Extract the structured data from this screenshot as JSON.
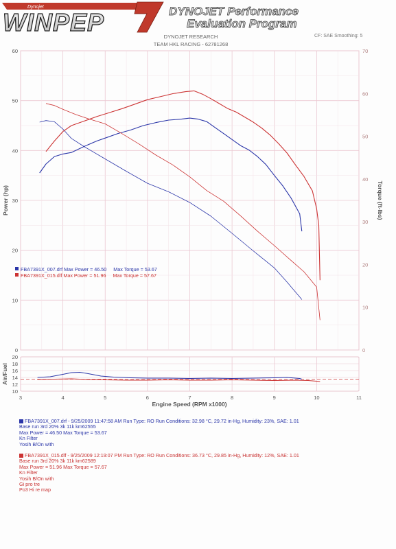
{
  "header": {
    "logo_text": "WINPEP",
    "logo_number": "7",
    "logo_tagline": "Dynojet",
    "app_title_line1": "DYNOJET Performance",
    "app_title_line2": "Evaluation Program",
    "report_line1": "DYNOJET RESEARCH",
    "report_line2": "TEAM HKL RACING - 62781268",
    "corner_text": "CF: SAE Smoothing: 5"
  },
  "colors": {
    "blue_run": "#2a35a8",
    "red_run": "#cc3333",
    "grid": "#ebc8d2",
    "axis_text": "#555555"
  },
  "legend_inset": [
    {
      "text": "FBA7391X_007.drf Max Power = 46.50     Max Torque = 53.67",
      "color": "#2a35a8"
    },
    {
      "text": "FBA7391X_015.dlf Max Power = 51.96     Max Torque = 57.67",
      "color": "#cc3333"
    }
  ],
  "runs": [
    {
      "color": "#2a35a8",
      "lines": [
        "FBA7391X_007.drf - 9/25/2009 11:47:58 AM  Run Type: RO  Run Conditions: 32.98 °C, 29.72 in-Hg,  Humidity:  23%, SAE: 1.01",
        "Base  run 3rd 20% 3k 11k km62555",
        "Max Power = 46.50  Max Torque = 53.67",
        "Kn Filter",
        "Yosih B/On with"
      ]
    },
    {
      "color": "#cc3333",
      "lines": [
        "FBA7391X_015.dlf - 9/25/2009 12:19:07 PM  Run Type: RO  Run Conditions: 36.73 °C, 29.85 in-Hg,  Humidity:  12%, SAE: 1.01",
        "Base  run 3rd 20% 3k 11k km62589",
        "Max Power = 51.96  Max Torque = 57.67",
        "Kn Filter",
        "Yosih B/On with",
        "Gi pro tre",
        "Po3 Hi re map"
      ]
    }
  ],
  "chart_data": [
    {
      "type": "line",
      "title": "",
      "xlabel": "Engine Speed (RPM x1000)",
      "ylabel": "Power (hp)",
      "ylabel_right": "Torque (ft-lbs)",
      "xlim": [
        3,
        11
      ],
      "ylim": [
        0,
        60
      ],
      "ylim_right": [
        0,
        70
      ],
      "x_ticks": [
        3,
        4,
        5,
        6,
        7,
        8,
        9,
        10,
        11
      ],
      "y_ticks": [
        0,
        10,
        20,
        30,
        40,
        50,
        60
      ],
      "y_ticks_right": [
        0,
        10,
        20,
        30,
        40,
        50,
        60,
        70
      ],
      "grid": true,
      "series": [
        {
          "axis": "left",
          "color": "#2a35a8",
          "x": [
            3.45,
            3.6,
            3.8,
            4.0,
            4.2,
            4.5,
            4.8,
            5.0,
            5.3,
            5.6,
            5.9,
            6.2,
            6.5,
            6.8,
            7.0,
            7.2,
            7.4,
            7.6,
            7.8,
            8.0,
            8.2,
            8.4,
            8.6,
            8.8,
            9.0,
            9.2,
            9.4,
            9.6,
            9.65
          ],
          "y": [
            35.5,
            37.3,
            38.8,
            39.3,
            39.6,
            40.8,
            41.9,
            42.5,
            43.4,
            44.1,
            45.0,
            45.6,
            46.1,
            46.3,
            46.5,
            46.3,
            45.8,
            44.6,
            43.4,
            42.2,
            41.0,
            40.1,
            38.8,
            37.2,
            35.0,
            32.9,
            30.4,
            27.3,
            23.8
          ]
        },
        {
          "axis": "right",
          "color": "#2a35a8",
          "x": [
            3.45,
            3.6,
            3.8,
            4.0,
            4.2,
            4.5,
            5.0,
            5.5,
            6.0,
            6.5,
            7.0,
            7.5,
            8.0,
            8.5,
            9.0,
            9.3,
            9.6,
            9.65
          ],
          "y": [
            53.3,
            53.67,
            53.4,
            51.7,
            49.5,
            47.6,
            44.7,
            41.8,
            39.0,
            37.0,
            34.5,
            31.3,
            27.3,
            23.2,
            19.2,
            15.9,
            12.4,
            11.8
          ]
        },
        {
          "axis": "left",
          "color": "#cc3333",
          "x": [
            3.6,
            3.8,
            4.0,
            4.2,
            4.5,
            4.8,
            5.1,
            5.4,
            5.7,
            6.0,
            6.3,
            6.6,
            6.9,
            7.1,
            7.3,
            7.5,
            7.7,
            7.9,
            8.1,
            8.3,
            8.5,
            8.7,
            8.9,
            9.1,
            9.3,
            9.5,
            9.7,
            9.9,
            10.0,
            10.05,
            10.08
          ],
          "y": [
            39.8,
            41.9,
            43.8,
            45.0,
            45.9,
            46.8,
            47.6,
            48.4,
            49.3,
            50.2,
            50.8,
            51.4,
            51.8,
            51.96,
            51.3,
            50.4,
            49.4,
            48.4,
            47.7,
            46.7,
            45.7,
            44.5,
            43.1,
            41.4,
            39.5,
            37.1,
            34.8,
            31.9,
            28.3,
            25.0,
            14.0
          ]
        },
        {
          "axis": "right",
          "color": "#cc3333",
          "x": [
            3.6,
            3.8,
            4.0,
            4.3,
            4.6,
            5.0,
            5.4,
            5.8,
            6.2,
            6.6,
            7.0,
            7.4,
            7.8,
            8.2,
            8.6,
            9.0,
            9.4,
            9.7,
            10.0,
            10.08
          ],
          "y": [
            57.67,
            57.2,
            56.3,
            55.1,
            54.1,
            52.9,
            50.6,
            48.2,
            45.6,
            43.3,
            40.5,
            37.3,
            34.8,
            31.4,
            27.8,
            24.4,
            20.9,
            18.3,
            14.7,
            7.0
          ]
        }
      ]
    },
    {
      "type": "line",
      "title": "",
      "xlabel": "Engine Speed (RPM x1000)",
      "ylabel": "Air/Fuel",
      "xlim": [
        3,
        11
      ],
      "ylim": [
        10,
        20
      ],
      "x_ticks": [
        3,
        4,
        5,
        6,
        7,
        8,
        9,
        10,
        11
      ],
      "y_ticks": [
        10,
        12,
        14,
        16,
        18,
        20
      ],
      "grid": true,
      "reference_line": 13.5,
      "series": [
        {
          "color": "#2a35a8",
          "x": [
            3.4,
            3.7,
            4.0,
            4.2,
            4.4,
            4.6,
            4.9,
            5.2,
            5.6,
            6.0,
            6.5,
            7.0,
            7.5,
            8.0,
            8.5,
            9.0,
            9.3,
            9.6,
            9.65
          ],
          "y": [
            14.0,
            14.2,
            14.9,
            15.4,
            15.5,
            15.1,
            14.4,
            14.1,
            13.9,
            13.8,
            13.8,
            13.7,
            13.8,
            13.7,
            13.8,
            13.9,
            14.0,
            13.7,
            13.5
          ]
        },
        {
          "color": "#cc3333",
          "x": [
            3.4,
            3.8,
            4.2,
            4.6,
            5.0,
            5.5,
            6.0,
            6.5,
            7.0,
            7.5,
            8.0,
            8.5,
            9.0,
            9.5,
            9.8,
            10.0,
            10.08
          ],
          "y": [
            13.4,
            13.5,
            13.6,
            13.4,
            13.3,
            13.2,
            13.2,
            13.3,
            13.2,
            13.2,
            13.3,
            13.2,
            13.1,
            13.2,
            13.1,
            12.9,
            12.8
          ]
        }
      ]
    }
  ]
}
